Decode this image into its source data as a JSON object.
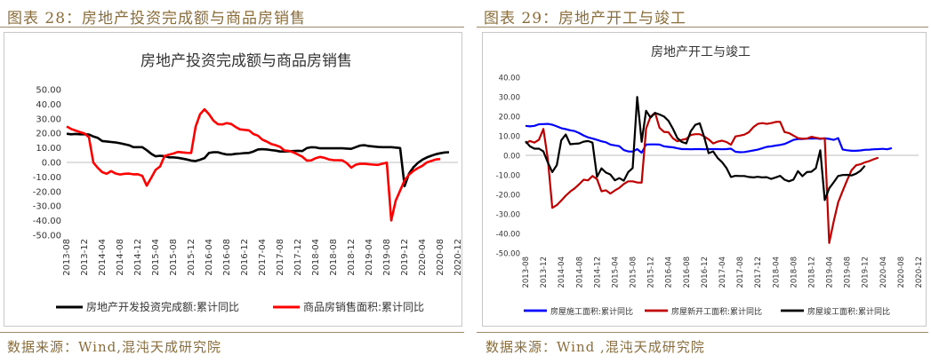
{
  "figures": [
    {
      "caption": "图表 28：房地产投资完成额与商品房销售",
      "source": "数据来源：Wind,混沌天成研究院"
    },
    {
      "caption": "图表 29：房地产开工与竣工",
      "source": "数据来源：Wind ,混沌天成研究院"
    }
  ],
  "chart_data": [
    {
      "type": "line",
      "title": "房地产投资完成额与商品房销售",
      "xlabel": "",
      "ylabel": "",
      "ylim": [
        -50,
        50
      ],
      "yticks": [
        "50.00",
        "40.00",
        "30.00",
        "20.00",
        "10.00",
        "0.00",
        "-10.00",
        "-20.00",
        "-30.00",
        "-40.00",
        "-50.00"
      ],
      "x_start": "2013-08",
      "x_labels": [
        "2013-08",
        "2013-12",
        "2014-04",
        "2014-08",
        "2014-12",
        "2015-04",
        "2015-08",
        "2015-12",
        "2016-04",
        "2016-08",
        "2016-12",
        "2017-04",
        "2017-08",
        "2017-12",
        "2018-04",
        "2018-08",
        "2018-12",
        "2019-04",
        "2019-08",
        "2019-12",
        "2020-04",
        "2020-08",
        "2020-12"
      ],
      "legend_position": "bottom",
      "grid": false,
      "series": [
        {
          "name": "房地产开发投资完成额:累计同比",
          "color": "#000000",
          "values": [
            19.7,
            19.3,
            19.6,
            19.3,
            19.3,
            19.2,
            17.8,
            16.8,
            14.7,
            14.4,
            14,
            13.7,
            13.2,
            12.5,
            11.8,
            10.5,
            10.5,
            10.5,
            8.4,
            6.0,
            4.2,
            4.6,
            4.3,
            3.5,
            3.5,
            3.2,
            2.6,
            2.0,
            1.3,
            1.0,
            1.8,
            3.0,
            6.5,
            7.0,
            7.0,
            6.1,
            5.4,
            5.4,
            5.9,
            6.1,
            6.4,
            6.5,
            7.5,
            8.9,
            9.1,
            8.9,
            8.5,
            8.1,
            7.5,
            7.5,
            7.7,
            7.8,
            8.0,
            7.8,
            9.8,
            10.4,
            10.3,
            9.7,
            9.7,
            9.7,
            9.7,
            9.7,
            9.7,
            9.5,
            9.3,
            10.5,
            11.6,
            11.8,
            11.2,
            10.9,
            10.6,
            10.5,
            10.5,
            10.5,
            10.2,
            9.9,
            -16.3,
            -7.7,
            -3.3,
            -0.3,
            1.9,
            3.4,
            4.6,
            5.6,
            6.3,
            6.8,
            7.0
          ]
        },
        {
          "name": "商品房销售面积:累计同比",
          "color": "#ff0000",
          "values": [
            24.7,
            23.0,
            21.9,
            20.8,
            19.9,
            17.3,
            -0.1,
            -3.8,
            -6.7,
            -7.8,
            -6.0,
            -7.6,
            -8.3,
            -7.8,
            -7.7,
            -8.2,
            -8.1,
            -9.2,
            -16.0,
            -10.7,
            -5.1,
            -2.8,
            4.3,
            5.3,
            6.1,
            7.2,
            6.9,
            6.6,
            6.5,
            24.6,
            33.1,
            36.5,
            33.2,
            28.7,
            26.3,
            26.1,
            27.0,
            26.4,
            24.3,
            22.7,
            22.4,
            22.0,
            19.5,
            18.4,
            15.7,
            14.3,
            12.7,
            11.8,
            10.7,
            8.2,
            7.9,
            6.9,
            5.4,
            3.9,
            1.3,
            1.4,
            2.9,
            3.8,
            3.1,
            2.0,
            1.6,
            1.5,
            1.4,
            -0.5,
            -3.6,
            -1.6,
            -0.9,
            -1.0,
            -1.3,
            -1.5,
            -1.7,
            -0.9,
            -0.1,
            -39.9,
            -26.3,
            -19.3,
            -12.3,
            -8.4,
            -5.8,
            -3.9,
            -2.3,
            0.0,
            1.0,
            2.0,
            2.3
          ]
        }
      ]
    },
    {
      "type": "line",
      "title": "房地产开工与竣工",
      "xlabel": "",
      "ylabel": "",
      "ylim": [
        -50,
        40
      ],
      "yticks": [
        "40.00",
        "30.00",
        "20.00",
        "10.00",
        "0.00",
        "-10.00",
        "-20.00",
        "-30.00",
        "-40.00",
        "-50.00"
      ],
      "x_start": "2013-08",
      "x_labels": [
        "2013-08",
        "2013-12",
        "2014-04",
        "2014-08",
        "2014-12",
        "2015-04",
        "2015-08",
        "2015-12",
        "2016-04",
        "2016-08",
        "2016-12",
        "2017-04",
        "2017-08",
        "2017-12",
        "2018-04",
        "2018-08",
        "2018-12",
        "2019-04",
        "2019-08",
        "2019-12",
        "2020-04",
        "2020-08",
        "2020-12"
      ],
      "legend_position": "bottom",
      "grid": false,
      "series": [
        {
          "name": "房屋施工面积:累计同比",
          "color": "#0000ff",
          "values": [
            15.1,
            14.8,
            15.1,
            15.9,
            16.0,
            16.1,
            15.7,
            14.8,
            13.9,
            13.4,
            12.8,
            12.4,
            11.4,
            10.2,
            9.2,
            8.6,
            7.9,
            7.2,
            6.7,
            5.5,
            5.1,
            4.7,
            2.7,
            2.0,
            1.9,
            3.2,
            1.3,
            5.5,
            5.6,
            5.6,
            5.5,
            4.6,
            4.3,
            4.1,
            3.6,
            3.2,
            3.2,
            3.1,
            3.2,
            3.2,
            3.1,
            3.2,
            3.2,
            3.2,
            3.1,
            3.2,
            3.4,
            1.8,
            1.6,
            1.7,
            2.1,
            2.5,
            2.9,
            3.6,
            4.3,
            4.6,
            5.0,
            5.3,
            5.8,
            6.8,
            7.9,
            8.3,
            8.3,
            8.6,
            8.6,
            8.7,
            8.4,
            8.7,
            8.4,
            7.9,
            8.8,
            3.0,
            2.6,
            2.3,
            2.3,
            2.5,
            2.8,
            2.9,
            3.1,
            3.2,
            3.3,
            3.1,
            3.7
          ]
        },
        {
          "name": "房屋新开工面积:累计同比",
          "color": "#c00000",
          "values": [
            6.2,
            7.3,
            6.5,
            8.0,
            13.5,
            -2.0,
            -26.9,
            -25.5,
            -23.2,
            -20.7,
            -18.6,
            -16.9,
            -14.8,
            -12.5,
            -12.8,
            -10.6,
            -12.2,
            -18.4,
            -17.9,
            -19.6,
            -18.0,
            -16.7,
            -14.7,
            -13.3,
            -13.3,
            -13.9,
            -14.0,
            13.7,
            19.8,
            21.8,
            14.1,
            12.0,
            11.8,
            8.7,
            7.2,
            7.9,
            8.4,
            10.4,
            10.8,
            10.8,
            9.7,
            8.2,
            6.1,
            7.0,
            7.5,
            6.8,
            5.4,
            9.7,
            10.1,
            10.6,
            11.8,
            14.4,
            16.1,
            16.5,
            16.1,
            16.5,
            17.1,
            17.2,
            11.9,
            11.4,
            10.1,
            8.8,
            8.5,
            8.6,
            9.5,
            9.0,
            8.6,
            8.7,
            -44.9,
            -33.8,
            -24.1,
            -18.3,
            -12.8,
            -7.6,
            -5.1,
            -4.6,
            -3.6,
            -2.9,
            -2.0,
            -1.2
          ]
        },
        {
          "name": "房屋竣工面积:累计同比",
          "color": "#000000",
          "values": [
            7.2,
            4.6,
            3.4,
            3.4,
            2.0,
            -3.7,
            -8.6,
            -5.0,
            7.7,
            10.7,
            5.7,
            5.9,
            6.1,
            7.0,
            7.3,
            6.5,
            -11.0,
            -6.7,
            -8.8,
            -9.8,
            -12.8,
            -11.7,
            -13.0,
            -8.6,
            -6.5,
            29.9,
            6.9,
            22.8,
            19.3,
            21.7,
            20.9,
            19.9,
            17.7,
            13.6,
            8.8,
            6.8,
            6.1,
            12.3,
            15.6,
            16.4,
            9.4,
            1.1,
            2.0,
            -1.3,
            -3.5,
            -6.5,
            -11.1,
            -10.5,
            -10.6,
            -10.6,
            -11.1,
            -11.3,
            -11.0,
            -11.3,
            -11.2,
            -12.1,
            -11.3,
            -10.5,
            -12.5,
            -13.3,
            -12.4,
            -8.1,
            -10.7,
            -8.6,
            -8.4,
            -6.6,
            2.6,
            -22.9,
            -16.9,
            -13.8,
            -10.6,
            -10.1,
            -10.0,
            -10.3,
            -9.4,
            -7.9,
            -5.3
          ]
        }
      ]
    }
  ]
}
